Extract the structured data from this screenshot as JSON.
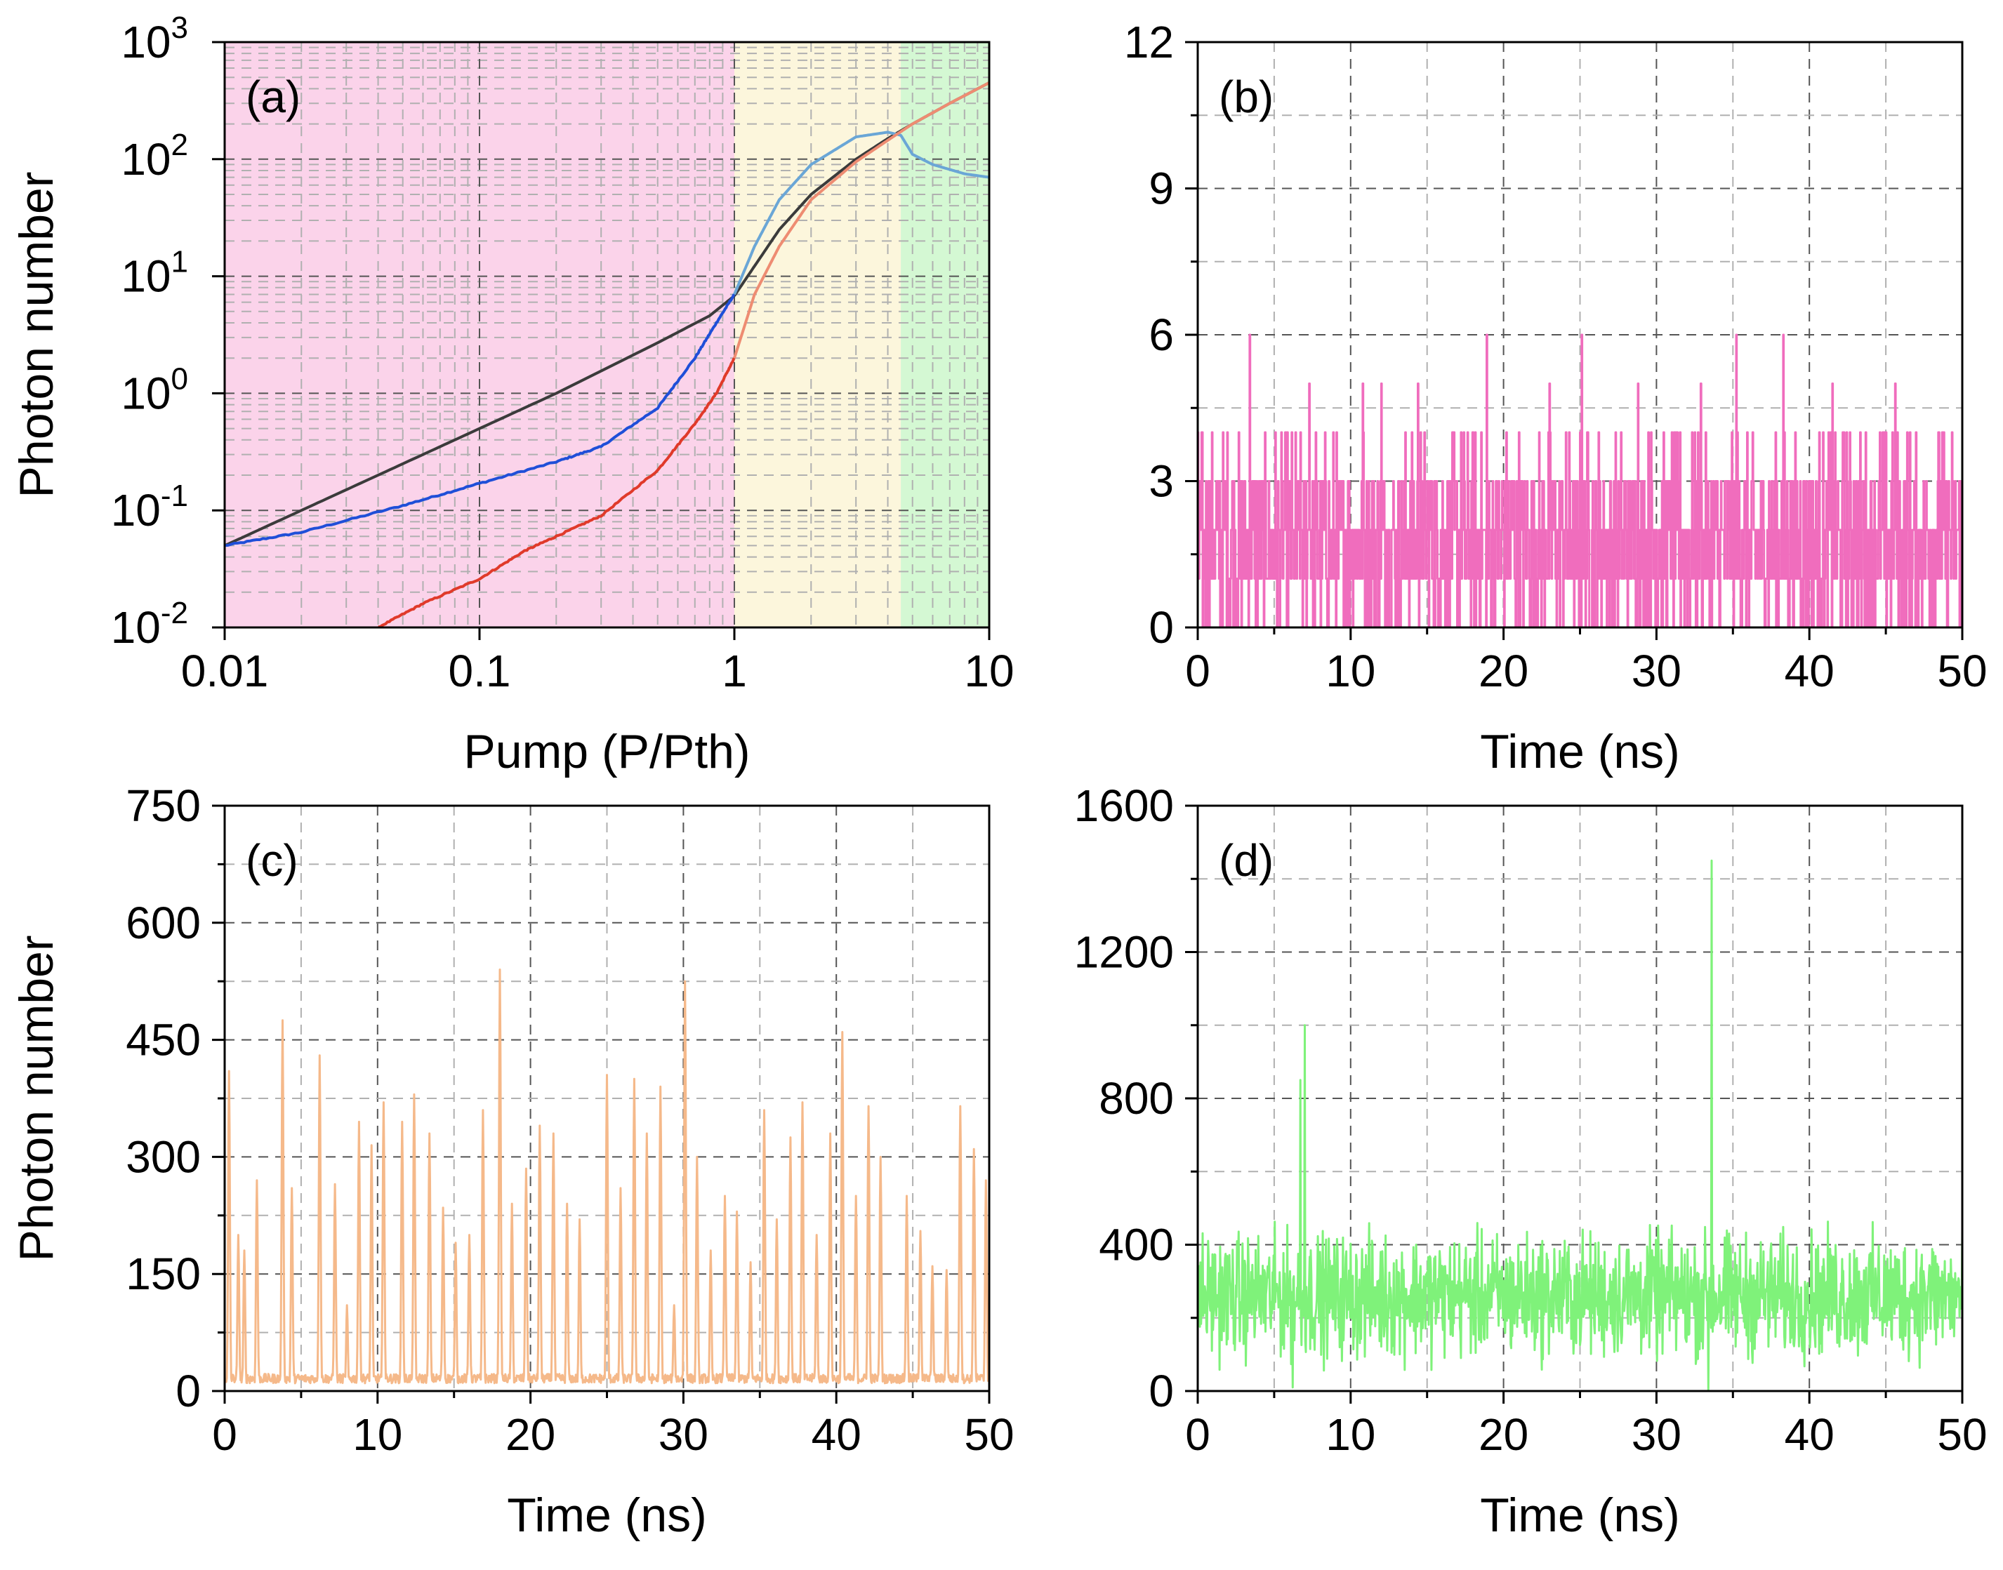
{
  "chart_data": [
    {
      "id": "a",
      "panel_label": "(a)",
      "type": "line",
      "xscale": "log",
      "yscale": "log",
      "xlim": [
        0.01,
        10
      ],
      "ylim": [
        0.01,
        1000
      ],
      "xlabel": "Pump (P/Pth)",
      "ylabel": "Photon number",
      "x_tick_labels": [
        "0.01",
        "0.1",
        "1",
        "10"
      ],
      "y_tick_labels": [
        {
          "base": "10",
          "exp": "-2"
        },
        {
          "base": "10",
          "exp": "-1"
        },
        {
          "base": "10",
          "exp": "0"
        },
        {
          "base": "10",
          "exp": "1"
        },
        {
          "base": "10",
          "exp": "2"
        },
        {
          "base": "10",
          "exp": "3"
        }
      ],
      "regions": [
        {
          "name": "below-threshold",
          "x": [
            0.01,
            1
          ],
          "color": "#fbd3ea"
        },
        {
          "name": "transition",
          "x": [
            1,
            4.5
          ],
          "color": "#fcf6dc"
        },
        {
          "name": "lasing",
          "x": [
            4.5,
            10
          ],
          "color": "#d4f8d3"
        }
      ],
      "series": [
        {
          "name": "black",
          "color": "#3b3b3b",
          "x": [
            0.01,
            0.02,
            0.05,
            0.1,
            0.2,
            0.5,
            0.8,
            1.0,
            1.5,
            2.0,
            3.0,
            4.0,
            5.0,
            7.0,
            10.0
          ],
          "y": [
            0.05,
            0.1,
            0.25,
            0.5,
            1.0,
            2.7,
            4.6,
            6.8,
            25,
            50,
            100,
            150,
            200,
            300,
            450
          ]
        },
        {
          "name": "blue",
          "color": "#1f4fd8",
          "color_above_threshold": "#6aa6d6",
          "x": [
            0.01,
            0.02,
            0.05,
            0.1,
            0.2,
            0.3,
            0.5,
            0.7,
            0.85,
            1.0,
            1.2,
            1.5,
            2.0,
            3.0,
            4.0,
            4.5,
            5.0,
            6.0,
            8.0,
            10.0
          ],
          "y": [
            0.05,
            0.065,
            0.11,
            0.17,
            0.26,
            0.35,
            0.75,
            2.0,
            4.0,
            7.0,
            18,
            45,
            90,
            155,
            170,
            160,
            110,
            90,
            75,
            70
          ]
        },
        {
          "name": "red",
          "color": "#e03a2a",
          "color_above_threshold": "#ee8c72",
          "x": [
            0.04,
            0.06,
            0.1,
            0.15,
            0.2,
            0.3,
            0.5,
            0.7,
            0.85,
            1.0,
            1.2,
            1.5,
            2.0,
            3.0,
            4.0,
            5.0,
            7.0,
            10.0
          ],
          "y": [
            0.01,
            0.016,
            0.026,
            0.045,
            0.06,
            0.09,
            0.22,
            0.55,
            1.0,
            2.0,
            7,
            18,
            45,
            95,
            145,
            200,
            300,
            450
          ]
        }
      ]
    },
    {
      "id": "b",
      "panel_label": "(b)",
      "type": "line",
      "xlim": [
        0,
        50
      ],
      "ylim": [
        0,
        12
      ],
      "xlabel": "Time (ns)",
      "ylabel": "",
      "x_ticks": [
        0,
        10,
        20,
        30,
        40,
        50
      ],
      "y_ticks": [
        0,
        3,
        6,
        9,
        12
      ],
      "series": [
        {
          "name": "photon-trace",
          "color": "#f06dbd",
          "description": "integer photon-number noise trace, mostly 0-3, occasional peaks of 4-6",
          "mean": 1.6,
          "max": 6,
          "min": 0,
          "peaks": [
            {
              "t": 3.4,
              "y": 6
            },
            {
              "t": 18.9,
              "y": 6
            },
            {
              "t": 25.1,
              "y": 6
            },
            {
              "t": 35.2,
              "y": 6
            },
            {
              "t": 38.3,
              "y": 6
            },
            {
              "t": 7.3,
              "y": 5
            },
            {
              "t": 10.8,
              "y": 5
            },
            {
              "t": 12.0,
              "y": 5
            },
            {
              "t": 14.4,
              "y": 5
            },
            {
              "t": 23.0,
              "y": 5
            },
            {
              "t": 28.8,
              "y": 5
            },
            {
              "t": 32.9,
              "y": 5
            },
            {
              "t": 41.5,
              "y": 5
            },
            {
              "t": 45.6,
              "y": 5
            }
          ]
        }
      ]
    },
    {
      "id": "c",
      "panel_label": "(c)",
      "type": "line",
      "xlim": [
        0,
        50
      ],
      "ylim": [
        0,
        750
      ],
      "xlabel": "Time (ns)",
      "ylabel": "Photon number",
      "x_ticks": [
        0,
        10,
        20,
        30,
        40,
        50
      ],
      "y_ticks": [
        0,
        150,
        300,
        450,
        600,
        750
      ],
      "series": [
        {
          "name": "pulse-train",
          "color": "#f5b98a",
          "description": "sparse spike train on a near-zero baseline",
          "baseline": 10,
          "peaks": [
            {
              "t": 0.3,
              "y": 410
            },
            {
              "t": 0.9,
              "y": 200
            },
            {
              "t": 1.3,
              "y": 180
            },
            {
              "t": 2.1,
              "y": 270
            },
            {
              "t": 3.8,
              "y": 475
            },
            {
              "t": 4.4,
              "y": 260
            },
            {
              "t": 6.2,
              "y": 430
            },
            {
              "t": 7.2,
              "y": 265
            },
            {
              "t": 8.0,
              "y": 110
            },
            {
              "t": 8.8,
              "y": 345
            },
            {
              "t": 9.6,
              "y": 315
            },
            {
              "t": 10.4,
              "y": 370
            },
            {
              "t": 11.6,
              "y": 345
            },
            {
              "t": 12.4,
              "y": 380
            },
            {
              "t": 13.4,
              "y": 330
            },
            {
              "t": 14.3,
              "y": 235
            },
            {
              "t": 15.1,
              "y": 190
            },
            {
              "t": 16.0,
              "y": 200
            },
            {
              "t": 16.9,
              "y": 360
            },
            {
              "t": 18.0,
              "y": 540
            },
            {
              "t": 18.8,
              "y": 240
            },
            {
              "t": 19.7,
              "y": 285
            },
            {
              "t": 20.6,
              "y": 340
            },
            {
              "t": 21.5,
              "y": 330
            },
            {
              "t": 22.4,
              "y": 240
            },
            {
              "t": 23.2,
              "y": 220
            },
            {
              "t": 25.0,
              "y": 405
            },
            {
              "t": 25.9,
              "y": 260
            },
            {
              "t": 26.8,
              "y": 400
            },
            {
              "t": 27.6,
              "y": 330
            },
            {
              "t": 28.5,
              "y": 390
            },
            {
              "t": 29.4,
              "y": 110
            },
            {
              "t": 30.1,
              "y": 525
            },
            {
              "t": 30.9,
              "y": 300
            },
            {
              "t": 31.8,
              "y": 180
            },
            {
              "t": 32.7,
              "y": 250
            },
            {
              "t": 33.5,
              "y": 230
            },
            {
              "t": 34.4,
              "y": 165
            },
            {
              "t": 35.3,
              "y": 360
            },
            {
              "t": 36.1,
              "y": 220
            },
            {
              "t": 37.0,
              "y": 325
            },
            {
              "t": 37.8,
              "y": 370
            },
            {
              "t": 38.7,
              "y": 200
            },
            {
              "t": 39.6,
              "y": 330
            },
            {
              "t": 40.4,
              "y": 460
            },
            {
              "t": 41.3,
              "y": 250
            },
            {
              "t": 42.1,
              "y": 365
            },
            {
              "t": 42.9,
              "y": 300
            },
            {
              "t": 44.6,
              "y": 250
            },
            {
              "t": 45.5,
              "y": 205
            },
            {
              "t": 46.3,
              "y": 160
            },
            {
              "t": 47.2,
              "y": 155
            },
            {
              "t": 48.1,
              "y": 365
            },
            {
              "t": 49.0,
              "y": 310
            },
            {
              "t": 49.8,
              "y": 270
            }
          ]
        }
      ]
    },
    {
      "id": "d",
      "panel_label": "(d)",
      "type": "line",
      "xlim": [
        0,
        50
      ],
      "ylim": [
        0,
        1600
      ],
      "xlabel": "Time (ns)",
      "ylabel": "",
      "x_ticks": [
        0,
        10,
        20,
        30,
        40,
        50
      ],
      "y_ticks": [
        0,
        400,
        800,
        1200,
        1600
      ],
      "series": [
        {
          "name": "photon-trace",
          "color": "#7ff27a",
          "description": "noisy trace fluctuating around ~260 with rare large spikes",
          "mean": 260,
          "peaks": [
            {
              "t": 6.7,
              "y": 850
            },
            {
              "t": 7.0,
              "y": 1000
            },
            {
              "t": 33.6,
              "y": 1450
            }
          ],
          "dips": [
            {
              "t": 6.2,
              "y": 10
            },
            {
              "t": 33.4,
              "y": 5
            }
          ]
        }
      ]
    }
  ]
}
